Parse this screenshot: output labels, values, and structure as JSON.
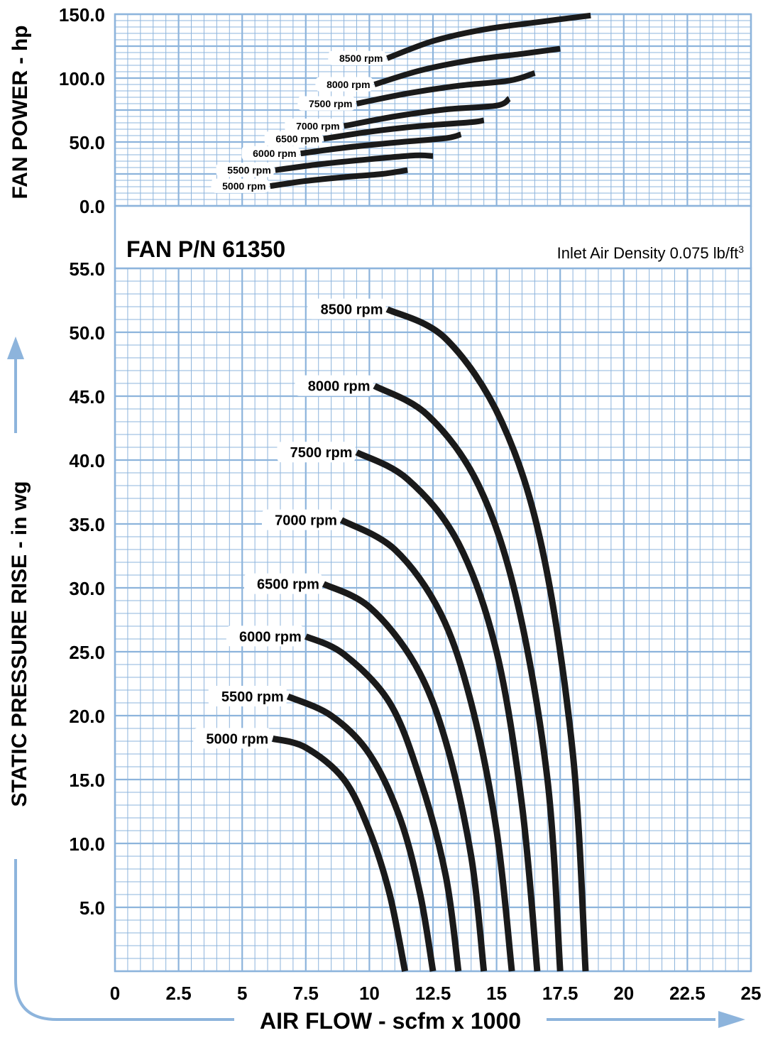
{
  "title": "FAN P/N 61350",
  "note": "Inlet Air Density 0.075 lb/ft",
  "note_sup": "3",
  "colors": {
    "grid": "#8db4dc",
    "curve": "#1a1a1a",
    "arrow": "#8db4dc"
  },
  "chart_data": [
    {
      "type": "line",
      "name": "fan-power",
      "ylabel": "FAN POWER - hp",
      "xlim": [
        0,
        25
      ],
      "ylim": [
        0,
        150
      ],
      "yticks": [
        "0.0",
        "50.0",
        "100.0",
        "150.0"
      ],
      "series": [
        {
          "name": "5000 rpm",
          "label_size": "sm",
          "points": [
            [
              6.1,
              15.5
            ],
            [
              7.5,
              19.5
            ],
            [
              9,
              22.5
            ],
            [
              10.5,
              25
            ],
            [
              11.5,
              28
            ]
          ]
        },
        {
          "name": "5500 rpm",
          "label_size": "sm",
          "points": [
            [
              6.3,
              28
            ],
            [
              8,
              32.5
            ],
            [
              10,
              36.5
            ],
            [
              11.8,
              39.5
            ],
            [
              12.5,
              39
            ]
          ]
        },
        {
          "name": "6000 rpm",
          "label_size": "sm",
          "points": [
            [
              7.3,
              41
            ],
            [
              9,
              45.5
            ],
            [
              11,
              49.5
            ],
            [
              13,
              53
            ],
            [
              13.6,
              56
            ]
          ]
        },
        {
          "name": "6500 rpm",
          "label_size": "sm",
          "points": [
            [
              8.2,
              52.5
            ],
            [
              10,
              58
            ],
            [
              12,
              62.5
            ],
            [
              14,
              65.5
            ],
            [
              14.5,
              67
            ]
          ]
        },
        {
          "name": "7000 rpm",
          "label_size": "sm",
          "points": [
            [
              9,
              62.5
            ],
            [
              11,
              70
            ],
            [
              13,
              75.5
            ],
            [
              15,
              78.5
            ],
            [
              15.5,
              84
            ]
          ]
        },
        {
          "name": "7500 rpm",
          "label_size": "sm",
          "points": [
            [
              9.5,
              80
            ],
            [
              11.5,
              88
            ],
            [
              13.5,
              94
            ],
            [
              15.5,
              98
            ],
            [
              16.5,
              104
            ]
          ]
        },
        {
          "name": "8000 rpm",
          "label_size": "sm",
          "points": [
            [
              10.2,
              95
            ],
            [
              12,
              106
            ],
            [
              14,
              114
            ],
            [
              16,
              119
            ],
            [
              17.5,
              123
            ]
          ]
        },
        {
          "name": "8500 rpm",
          "label_size": "sm",
          "points": [
            [
              10.7,
              115.5
            ],
            [
              12.5,
              129
            ],
            [
              14.5,
              138
            ],
            [
              16.5,
              143.5
            ],
            [
              18.7,
              149
            ]
          ]
        }
      ]
    },
    {
      "type": "line",
      "name": "static-pressure",
      "xlabel": "AIR FLOW - scfm x 1000",
      "ylabel": "STATIC PRESSURE RISE - in wg",
      "xlim": [
        0,
        25
      ],
      "ylim": [
        0,
        55
      ],
      "xticks": [
        "0",
        "2.5",
        "5",
        "7.5",
        "10",
        "12.5",
        "15",
        "17.5",
        "20",
        "22.5",
        "25"
      ],
      "yticks": [
        "5.0",
        "10.0",
        "15.0",
        "20.0",
        "25.0",
        "30.0",
        "35.0",
        "40.0",
        "45.0",
        "50.0",
        "55.0"
      ],
      "series": [
        {
          "name": "5000 rpm",
          "points": [
            [
              6.2,
              18.2
            ],
            [
              7.5,
              17.5
            ],
            [
              9,
              15
            ],
            [
              10,
              11
            ],
            [
              10.8,
              6
            ],
            [
              11.4,
              0
            ]
          ]
        },
        {
          "name": "5500 rpm",
          "points": [
            [
              6.8,
              21.5
            ],
            [
              8.5,
              20
            ],
            [
              10,
              17
            ],
            [
              11.2,
              12
            ],
            [
              12,
              6
            ],
            [
              12.5,
              0
            ]
          ]
        },
        {
          "name": "6000 rpm",
          "points": [
            [
              7.5,
              26.2
            ],
            [
              9,
              24.8
            ],
            [
              10.8,
              21
            ],
            [
              12,
              15
            ],
            [
              13,
              7.5
            ],
            [
              13.5,
              0
            ]
          ]
        },
        {
          "name": "6500 rpm",
          "points": [
            [
              8.2,
              30.3
            ],
            [
              10,
              28.5
            ],
            [
              11.8,
              24
            ],
            [
              13,
              18
            ],
            [
              14,
              9
            ],
            [
              14.5,
              0
            ]
          ]
        },
        {
          "name": "7000 rpm",
          "points": [
            [
              8.9,
              35.3
            ],
            [
              11,
              33
            ],
            [
              12.8,
              28
            ],
            [
              14,
              21
            ],
            [
              15,
              11
            ],
            [
              15.6,
              0
            ]
          ]
        },
        {
          "name": "7500 rpm",
          "points": [
            [
              9.5,
              40.6
            ],
            [
              11.5,
              38.5
            ],
            [
              13.5,
              33.5
            ],
            [
              15,
              25
            ],
            [
              16,
              13
            ],
            [
              16.6,
              0
            ]
          ]
        },
        {
          "name": "8000 rpm",
          "points": [
            [
              10.2,
              45.8
            ],
            [
              12.3,
              43.5
            ],
            [
              14.3,
              38
            ],
            [
              15.8,
              29
            ],
            [
              17,
              15
            ],
            [
              17.5,
              0
            ]
          ]
        },
        {
          "name": "8500 rpm",
          "points": [
            [
              10.7,
              51.8
            ],
            [
              13,
              49.5
            ],
            [
              15.2,
              43
            ],
            [
              16.8,
              33
            ],
            [
              18,
              17
            ],
            [
              18.5,
              0
            ]
          ]
        }
      ]
    }
  ]
}
